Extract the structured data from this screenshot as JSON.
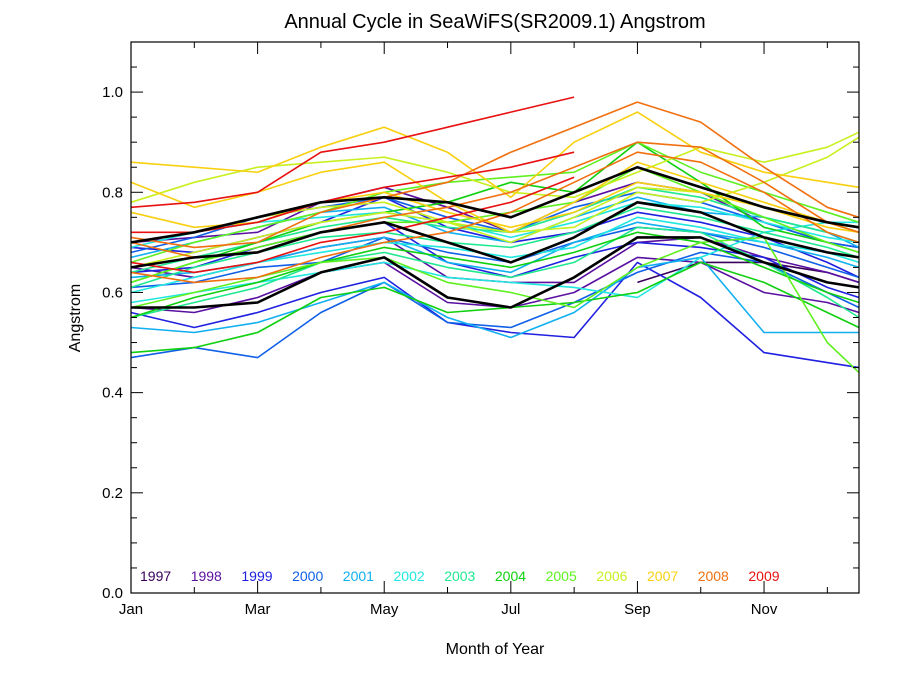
{
  "chart_data": {
    "type": "line",
    "title": "Annual Cycle in SeaWiFS(SR2009.1) Angstrom",
    "xlabel": "Month of Year",
    "ylabel": "Angstrom",
    "xlim": [
      1,
      12.5
    ],
    "ylim": [
      0.0,
      1.1
    ],
    "grid": false,
    "legend_position": "bottom-inside",
    "x_ticks": [
      {
        "value": 1,
        "label": "Jan"
      },
      {
        "value": 3,
        "label": "Mar"
      },
      {
        "value": 5,
        "label": "May"
      },
      {
        "value": 7,
        "label": "Jul"
      },
      {
        "value": 9,
        "label": "Sep"
      },
      {
        "value": 11,
        "label": "Nov"
      }
    ],
    "y_ticks": [
      {
        "value": 0.0,
        "label": "0.0"
      },
      {
        "value": 0.2,
        "label": "0.2"
      },
      {
        "value": 0.4,
        "label": "0.4"
      },
      {
        "value": 0.6,
        "label": "0.6"
      },
      {
        "value": 0.8,
        "label": "0.8"
      },
      {
        "value": 1.0,
        "label": "1.0"
      }
    ],
    "x": [
      1,
      2,
      3,
      4,
      5,
      6,
      7,
      8,
      9,
      10,
      11,
      12,
      12.5
    ],
    "series": [
      {
        "name": "1997",
        "color": "#3a005a",
        "lines": [
          [
            null,
            null,
            null,
            null,
            null,
            null,
            null,
            null,
            0.62,
            0.66,
            0.66,
            0.64,
            0.62
          ]
        ]
      },
      {
        "name": "1998",
        "color": "#5a10a0",
        "lines": [
          [
            0.65,
            0.63,
            0.66,
            0.69,
            0.71,
            0.63,
            0.62,
            0.62,
            0.7,
            0.71,
            0.67,
            0.64,
            0.62
          ],
          [
            0.57,
            0.56,
            0.59,
            0.64,
            0.66,
            0.58,
            0.57,
            0.6,
            0.67,
            0.66,
            0.6,
            0.58,
            0.56
          ],
          [
            0.7,
            0.71,
            0.72,
            0.78,
            0.81,
            0.77,
            0.72,
            0.78,
            0.82,
            0.8,
            0.74,
            0.7,
            0.69
          ]
        ]
      },
      {
        "name": "1999",
        "color": "#2020e0",
        "lines": [
          [
            0.56,
            0.53,
            0.56,
            0.6,
            0.63,
            0.54,
            0.52,
            0.51,
            0.66,
            0.59,
            0.48,
            0.46,
            0.45
          ],
          [
            0.64,
            0.65,
            0.69,
            0.72,
            0.74,
            0.66,
            0.63,
            0.67,
            0.7,
            0.69,
            0.67,
            0.61,
            0.59
          ],
          [
            0.69,
            0.68,
            0.71,
            0.74,
            0.79,
            0.73,
            0.7,
            0.72,
            0.76,
            0.74,
            0.71,
            0.66,
            0.63
          ]
        ]
      },
      {
        "name": "2000",
        "color": "#1060e8",
        "lines": [
          [
            0.47,
            0.49,
            0.47,
            0.56,
            0.62,
            0.54,
            0.53,
            0.58,
            0.64,
            0.68,
            0.66,
            0.6,
            0.57
          ],
          [
            0.61,
            0.62,
            0.65,
            0.66,
            0.71,
            0.68,
            0.66,
            0.7,
            0.73,
            0.72,
            0.69,
            0.65,
            0.63
          ],
          [
            0.68,
            0.71,
            0.75,
            0.77,
            0.79,
            0.75,
            0.72,
            0.77,
            0.8,
            0.78,
            0.74,
            0.7,
            0.69
          ]
        ]
      },
      {
        "name": "2001",
        "color": "#10b0f0",
        "lines": [
          [
            0.53,
            0.52,
            0.54,
            0.58,
            0.62,
            0.55,
            0.51,
            0.56,
            0.65,
            0.67,
            0.52,
            0.52,
            0.52
          ],
          [
            0.63,
            0.64,
            0.66,
            0.69,
            0.71,
            0.66,
            0.64,
            0.7,
            0.74,
            0.72,
            0.7,
            0.67,
            0.65
          ],
          [
            0.67,
            0.7,
            0.73,
            0.76,
            0.77,
            0.72,
            0.7,
            0.75,
            0.79,
            0.76,
            0.75,
            0.72,
            0.69
          ]
        ]
      },
      {
        "name": "2002",
        "color": "#20e8e0",
        "lines": [
          [
            0.58,
            0.6,
            0.62,
            0.64,
            0.66,
            0.63,
            0.62,
            0.61,
            0.59,
            0.67,
            0.72,
            0.74,
            0.74
          ],
          [
            0.6,
            0.63,
            0.66,
            0.68,
            0.7,
            0.69,
            0.67,
            0.69,
            0.75,
            0.73,
            0.7,
            0.68,
            0.66
          ],
          [
            0.69,
            0.72,
            0.74,
            0.75,
            0.76,
            0.74,
            0.71,
            0.74,
            0.78,
            0.77,
            0.74,
            0.71,
            0.7
          ]
        ]
      },
      {
        "name": "2003",
        "color": "#20e890",
        "lines": [
          [
            0.55,
            0.58,
            0.61,
            0.66,
            0.68,
            0.65,
            0.63,
            0.66,
            0.73,
            0.72,
            0.66,
            0.59,
            0.55
          ],
          [
            0.61,
            0.65,
            0.68,
            0.71,
            0.72,
            0.7,
            0.69,
            0.72,
            0.77,
            0.75,
            0.72,
            0.69,
            0.67
          ],
          [
            0.64,
            0.67,
            0.7,
            0.73,
            0.75,
            0.73,
            0.72,
            0.76,
            0.81,
            0.79,
            0.75,
            0.72,
            0.7
          ]
        ]
      },
      {
        "name": "2004",
        "color": "#10d010",
        "lines": [
          [
            0.48,
            0.49,
            0.52,
            0.59,
            0.61,
            0.56,
            0.57,
            0.58,
            0.6,
            0.66,
            0.62,
            0.56,
            0.53
          ],
          [
            0.55,
            0.59,
            0.62,
            0.66,
            0.69,
            0.67,
            0.65,
            0.68,
            0.72,
            0.7,
            0.65,
            0.6,
            0.58
          ],
          [
            0.62,
            0.66,
            0.7,
            0.74,
            0.76,
            0.78,
            0.82,
            0.8,
            0.9,
            0.82,
            0.73,
            0.7,
            0.68
          ]
        ]
      },
      {
        "name": "2005",
        "color": "#60f020",
        "lines": [
          [
            0.57,
            0.6,
            0.63,
            0.66,
            0.67,
            0.62,
            0.6,
            0.57,
            0.65,
            0.7,
            0.71,
            0.5,
            0.44
          ],
          [
            0.62,
            0.66,
            0.69,
            0.72,
            0.74,
            0.74,
            0.76,
            0.78,
            0.85,
            0.8,
            0.75,
            0.7,
            0.68
          ],
          [
            0.66,
            0.7,
            0.73,
            0.76,
            0.8,
            0.82,
            0.83,
            0.84,
            0.9,
            0.84,
            0.8,
            0.76,
            0.74
          ]
        ]
      },
      {
        "name": "2006",
        "color": "#c8f020",
        "lines": [
          [
            0.78,
            0.82,
            0.85,
            0.86,
            0.87,
            0.84,
            0.8,
            0.79,
            0.84,
            0.89,
            0.86,
            0.89,
            0.92
          ],
          [
            0.7,
            0.72,
            0.75,
            0.77,
            0.78,
            0.74,
            0.72,
            0.73,
            0.8,
            0.78,
            0.82,
            0.87,
            0.91
          ],
          [
            0.65,
            0.68,
            0.71,
            0.74,
            0.76,
            0.74,
            0.7,
            0.75,
            0.81,
            0.8,
            0.77,
            0.74,
            0.72
          ]
        ]
      },
      {
        "name": "2007",
        "color": "#f8d010",
        "lines": [
          [
            0.86,
            0.85,
            0.84,
            0.89,
            0.93,
            0.88,
            0.79,
            0.9,
            0.96,
            0.88,
            0.84,
            0.82,
            0.81
          ],
          [
            0.82,
            0.77,
            0.8,
            0.84,
            0.86,
            0.78,
            0.72,
            0.78,
            0.86,
            0.82,
            0.78,
            0.74,
            0.73
          ],
          [
            0.76,
            0.73,
            0.74,
            0.78,
            0.8,
            0.76,
            0.73,
            0.76,
            0.82,
            0.8,
            0.77,
            0.73,
            0.72
          ]
        ]
      },
      {
        "name": "2008",
        "color": "#f07010",
        "lines": [
          [
            0.71,
            0.69,
            0.7,
            0.76,
            0.79,
            0.82,
            0.88,
            0.93,
            0.98,
            0.94,
            0.85,
            0.77,
            0.75
          ],
          [
            0.7,
            0.67,
            0.68,
            0.72,
            0.75,
            0.77,
            0.8,
            0.85,
            0.9,
            0.89,
            0.82,
            0.74,
            0.72
          ],
          [
            0.64,
            0.62,
            0.63,
            0.67,
            0.7,
            0.72,
            0.76,
            0.82,
            0.88,
            0.86,
            0.8,
            0.72,
            0.7
          ]
        ]
      },
      {
        "name": "2009",
        "color": "#e81010",
        "lines": [
          [
            0.77,
            0.78,
            0.8,
            0.88,
            0.9,
            0.93,
            0.96,
            0.99,
            null,
            null,
            null,
            null,
            null
          ],
          [
            0.72,
            0.72,
            0.74,
            0.78,
            0.81,
            0.83,
            0.85,
            0.88,
            null,
            null,
            null,
            null,
            null
          ],
          [
            0.66,
            0.64,
            0.66,
            0.7,
            0.72,
            0.75,
            0.78,
            0.83,
            null,
            null,
            null,
            null,
            null
          ]
        ]
      },
      {
        "name": "",
        "color": "#000000",
        "lines": [
          [
            0.7,
            0.72,
            0.75,
            0.78,
            0.79,
            0.78,
            0.75,
            0.8,
            0.85,
            0.81,
            0.77,
            0.74,
            0.73
          ],
          [
            0.65,
            0.67,
            0.68,
            0.72,
            0.74,
            0.7,
            0.66,
            0.71,
            0.78,
            0.76,
            0.71,
            0.68,
            0.67
          ],
          [
            0.57,
            0.57,
            0.58,
            0.64,
            0.67,
            0.59,
            0.57,
            0.63,
            0.71,
            0.71,
            0.66,
            0.62,
            0.61
          ]
        ]
      }
    ]
  }
}
